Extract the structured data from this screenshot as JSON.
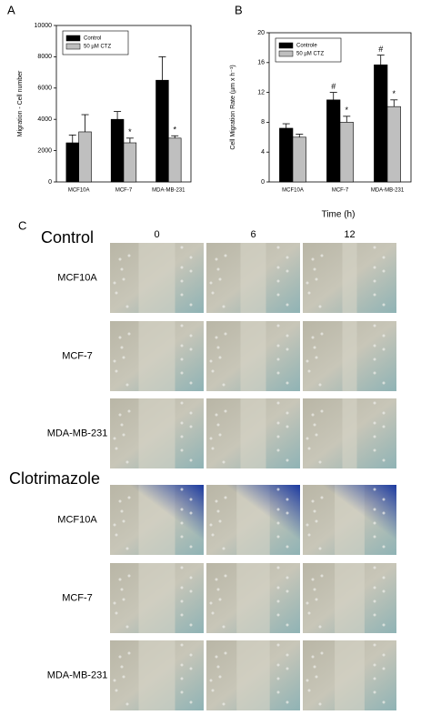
{
  "chart_data": [
    {
      "type": "bar",
      "panel": "A",
      "y_label": "Migration - Cell number",
      "categories": [
        "MCF10A",
        "MCF-7",
        "MDA-MB-231"
      ],
      "series": [
        {
          "name": "Control",
          "color": "#000000",
          "values": [
            2500,
            4000,
            6500
          ],
          "errors": [
            500,
            500,
            1500
          ],
          "annotations": [
            null,
            null,
            null
          ]
        },
        {
          "name": "50 µM CTZ",
          "color": "#bfbfbf",
          "values": [
            3200,
            2500,
            2800
          ],
          "errors": [
            1100,
            300,
            150
          ],
          "annotations": [
            null,
            "*",
            "*"
          ]
        }
      ],
      "ylim": [
        0,
        10000
      ],
      "yticks": [
        0,
        2000,
        4000,
        6000,
        8000,
        10000
      ],
      "legend": "top-left"
    },
    {
      "type": "bar",
      "panel": "B",
      "y_label": "Cell Migration Rate (µm x h⁻¹)",
      "categories": [
        "MCF10A",
        "MCF-7",
        "MDA-MB-231"
      ],
      "series": [
        {
          "name": "Controle",
          "color": "#000000",
          "values": [
            7.2,
            11.0,
            15.7
          ],
          "errors": [
            0.6,
            1.0,
            1.3
          ],
          "annotations": [
            null,
            "#",
            "#"
          ]
        },
        {
          "name": "50 µM CTZ",
          "color": "#bfbfbf",
          "values": [
            6.0,
            8.0,
            10.1
          ],
          "errors": [
            0.4,
            0.8,
            0.9
          ],
          "annotations": [
            null,
            "*",
            "*"
          ]
        }
      ],
      "ylim": [
        0,
        20
      ],
      "yticks": [
        0,
        4,
        8,
        12,
        16,
        20
      ],
      "legend": "top-left"
    }
  ],
  "panel_c": {
    "panel": "C",
    "axis_title": "Time (h)",
    "times": [
      0,
      6,
      12
    ],
    "groups": [
      {
        "title": "Control",
        "rows": [
          "MCF10A",
          "MCF-7",
          "MDA-MB-231"
        ]
      },
      {
        "title": "Clotrimazole",
        "rows": [
          "MCF10A",
          "MCF-7",
          "MDA-MB-231"
        ]
      }
    ]
  }
}
